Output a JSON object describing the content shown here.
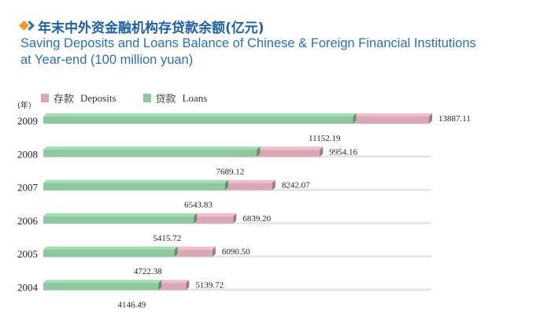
{
  "header": {
    "title_cn": "年末中外资金融机构存贷款余额(亿元)",
    "title_en_line1": "Saving Deposits and Loans Balance of Chinese & Foreign Financial Institutions",
    "title_en_line2": "at Year-end (100 million yuan)"
  },
  "legend": {
    "deposits_cn": "存款",
    "deposits_en": "Deposits",
    "loans_cn": "贷款",
    "loans_en": "Loans"
  },
  "colors": {
    "deposits": "#d8a9b5",
    "loans": "#8fc79e",
    "title": "#1f5fa8"
  },
  "chart_data": {
    "type": "bar",
    "orientation": "horizontal",
    "y_unit_label": "(年)",
    "categories": [
      "2009",
      "2008",
      "2007",
      "2006",
      "2005",
      "2004"
    ],
    "series": [
      {
        "name": "存款 Deposits",
        "values": [
          13887.11,
          9954.16,
          8242.07,
          6839.2,
          6090.5,
          5139.72
        ]
      },
      {
        "name": "贷款 Loans",
        "values": [
          11152.19,
          7689.12,
          6543.83,
          5415.72,
          4722.38,
          4146.49
        ]
      }
    ],
    "value_labels": {
      "deposits": [
        "13887.11",
        "9954.16",
        "8242.07",
        "6839.20",
        "6090.50",
        "5139.72"
      ],
      "loans": [
        "11152.19",
        "7689.12",
        "6543.83",
        "5415.72",
        "4722.38",
        "4146.49"
      ]
    },
    "legend_position": "top-left",
    "grid": false
  }
}
